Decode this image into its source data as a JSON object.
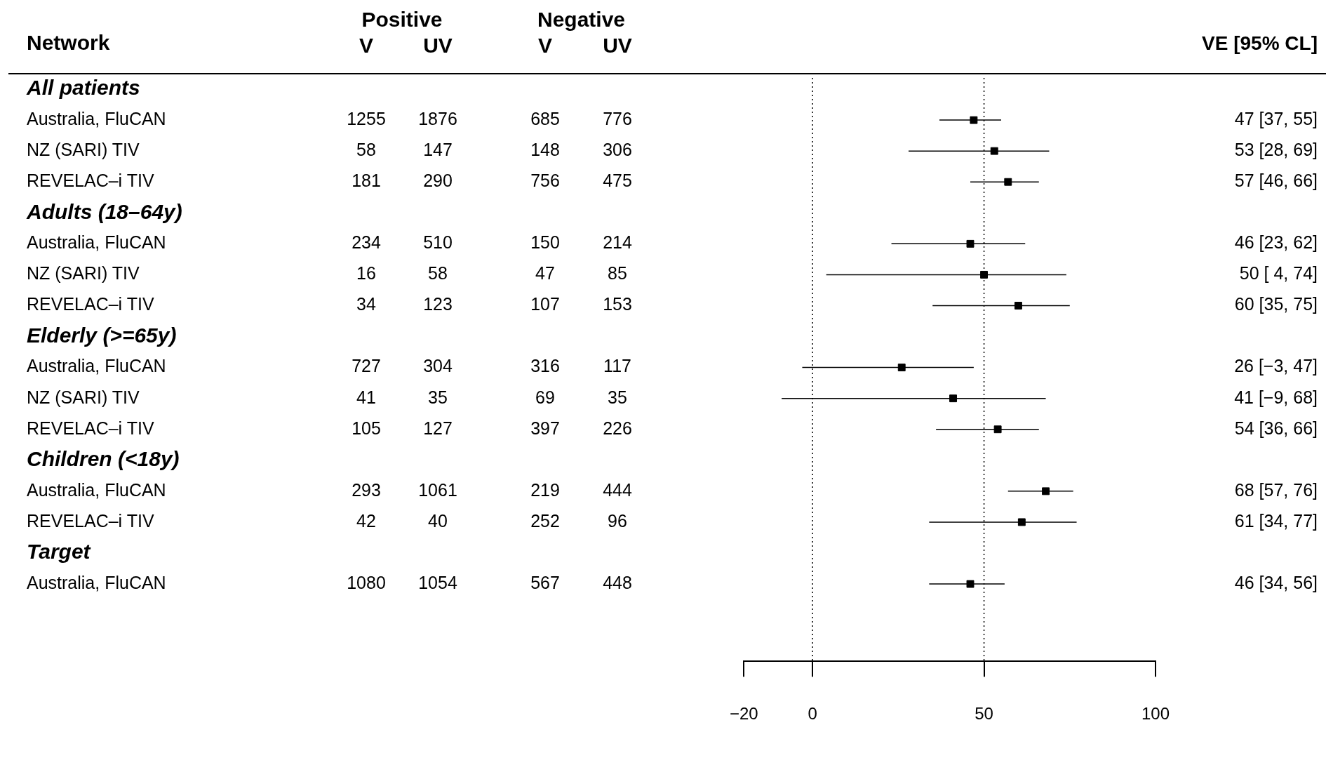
{
  "chart_data": [
    {
      "type": "heatmap",
      "data_labels": true,
      "ylabel": "Network",
      "annotations": [
        "Positive",
        "Negative"
      ],
      "categories": [
        "V",
        "UV",
        "V",
        "UV"
      ],
      "y_categories": [
        "All patients",
        "Australia, FluCAN",
        "NZ (SARI) TIV",
        "REVELAC–i TIV",
        "Adults (18–64y)",
        "Australia, FluCAN",
        "NZ (SARI) TIV",
        "REVELAC–i TIV",
        "Elderly (>=65y)",
        "Australia, FluCAN",
        "NZ (SARI) TIV",
        "REVELAC–i TIV",
        "Children (<18y)",
        "Australia, FluCAN",
        "REVELAC–i TIV",
        "Target",
        "Australia, FluCAN"
      ],
      "cells": [
        [
          null,
          null,
          null,
          null
        ],
        [
          1255,
          1876,
          685,
          776
        ],
        [
          58,
          147,
          148,
          306
        ],
        [
          181,
          290,
          756,
          475
        ],
        [
          null,
          null,
          null,
          null
        ],
        [
          234,
          510,
          150,
          214
        ],
        [
          16,
          58,
          47,
          85
        ],
        [
          34,
          123,
          107,
          153
        ],
        [
          null,
          null,
          null,
          null
        ],
        [
          727,
          304,
          316,
          117
        ],
        [
          41,
          35,
          69,
          35
        ],
        [
          105,
          127,
          397,
          226
        ],
        [
          null,
          null,
          null,
          null
        ],
        [
          293,
          1061,
          219,
          444
        ],
        [
          42,
          40,
          252,
          96
        ],
        [
          null,
          null,
          null,
          null
        ],
        [
          1080,
          1054,
          567,
          448
        ]
      ]
    },
    {
      "type": "scatter",
      "orientation": "horizontal",
      "tick_labels": "x",
      "marker": "square",
      "color": "#000000",
      "annotations": [
        "VE [95% CL]"
      ],
      "categories": [
        null,
        null,
        null,
        null,
        null,
        null,
        null,
        null,
        null,
        null,
        null,
        null,
        null,
        null,
        null,
        null,
        null,
        null,
        null
      ],
      "values": [
        null,
        47,
        53,
        57,
        null,
        46,
        50,
        60,
        null,
        26,
        41,
        54,
        null,
        68,
        61,
        null,
        46,
        null,
        null
      ],
      "errors": [
        null,
        [
          37,
          55
        ],
        [
          28,
          69
        ],
        [
          46,
          66
        ],
        null,
        [
          23,
          62
        ],
        [
          4,
          74
        ],
        [
          35,
          75
        ],
        null,
        [
          -3,
          47
        ],
        [
          -9,
          68
        ],
        [
          36,
          66
        ],
        null,
        [
          57,
          76
        ],
        [
          34,
          77
        ],
        null,
        [
          34,
          56
        ],
        null,
        null
      ],
      "value_labels": [
        null,
        "47 [37, 55]",
        "53 [28, 69]",
        "57 [46, 66]",
        null,
        "46 [23, 62]",
        "50 [ 4, 74]",
        "60 [35, 75]",
        null,
        "26 [−3, 47]",
        "41 [−9, 68]",
        "54 [36, 66]",
        null,
        "68 [57, 76]",
        "61 [34, 77]",
        null,
        "46 [34, 56]",
        null,
        null
      ],
      "xlim": [
        -20,
        100
      ],
      "xticks": [
        -20,
        0,
        50,
        100
      ],
      "ref_lines": [
        {
          "axis": "x",
          "value": 0,
          "line_style": "dotted"
        },
        {
          "axis": "x",
          "value": 50,
          "line_style": "dotted"
        }
      ]
    }
  ]
}
